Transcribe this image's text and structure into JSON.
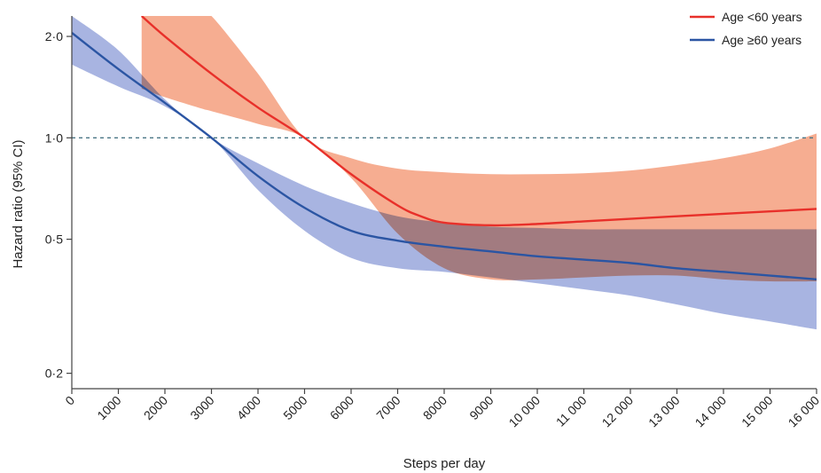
{
  "chart_data": {
    "type": "line",
    "title": "",
    "xlabel": "Steps per day",
    "ylabel": "Hazard ratio (95% CI)",
    "x_ticks": [
      0,
      1000,
      2000,
      3000,
      4000,
      5000,
      6000,
      7000,
      8000,
      9000,
      10000,
      11000,
      12000,
      13000,
      14000,
      15000,
      16000
    ],
    "x_tick_labels": [
      "0",
      "1000",
      "2000",
      "3000",
      "4000",
      "5000",
      "6000",
      "7000",
      "8000",
      "9000",
      "10 000",
      "11 000",
      "12 000",
      "13 000",
      "14 000",
      "15 000",
      "16 000"
    ],
    "y_ticks": [
      0.2,
      0.5,
      1.0,
      2.0
    ],
    "y_tick_labels": [
      "0·2",
      "0·5",
      "1·0",
      "2·0"
    ],
    "y_scale": "log",
    "xlim": [
      0,
      16000
    ],
    "ylim": [
      0.18,
      2.3
    ],
    "reference_line": {
      "y": 1.0,
      "style": "dashed"
    },
    "legend_position": "top-right",
    "series": [
      {
        "name": "Age <60 years",
        "color": "#e8302a",
        "band_color": "#f28d66",
        "x": [
          1500,
          2000,
          3000,
          4000,
          5000,
          6000,
          7000,
          7500,
          8000,
          9000,
          10000,
          11000,
          12000,
          13000,
          14000,
          15000,
          16000
        ],
        "y": [
          2.3,
          2.0,
          1.55,
          1.23,
          1.0,
          0.78,
          0.63,
          0.585,
          0.56,
          0.55,
          0.555,
          0.565,
          0.575,
          0.585,
          0.595,
          0.605,
          0.615
        ],
        "ci_x": [
          1500,
          2000,
          2800,
          3000,
          4000,
          5000,
          6000,
          7000,
          8000,
          9000,
          10000,
          11000,
          12000,
          13000,
          14000,
          15000,
          16000
        ],
        "ci_lower": [
          1.4,
          1.32,
          1.22,
          1.2,
          1.1,
          1.0,
          0.76,
          0.52,
          0.41,
          0.38,
          0.38,
          0.385,
          0.39,
          0.39,
          0.38,
          0.375,
          0.375
        ],
        "ci_upper": [
          2.3,
          2.3,
          2.3,
          2.3,
          1.55,
          1.0,
          0.87,
          0.81,
          0.79,
          0.78,
          0.78,
          0.785,
          0.8,
          0.83,
          0.87,
          0.93,
          1.03
        ]
      },
      {
        "name": "Age ≥60 years",
        "color": "#2b55a3",
        "band_color": "#8f9fd9",
        "x": [
          0,
          1000,
          2000,
          3000,
          4000,
          5000,
          6000,
          7000,
          8000,
          9000,
          10000,
          11000,
          12000,
          13000,
          14000,
          15000,
          16000
        ],
        "y": [
          2.05,
          1.6,
          1.27,
          1.0,
          0.77,
          0.62,
          0.53,
          0.495,
          0.475,
          0.46,
          0.445,
          0.435,
          0.425,
          0.41,
          0.4,
          0.39,
          0.38
        ],
        "ci_lower": [
          1.65,
          1.42,
          1.24,
          1.0,
          0.7,
          0.53,
          0.44,
          0.41,
          0.4,
          0.385,
          0.37,
          0.355,
          0.34,
          0.32,
          0.3,
          0.285,
          0.27
        ],
        "ci_upper": [
          2.3,
          1.82,
          1.3,
          1.0,
          0.84,
          0.72,
          0.64,
          0.585,
          0.56,
          0.545,
          0.54,
          0.535,
          0.535,
          0.535,
          0.535,
          0.535,
          0.535
        ]
      }
    ]
  }
}
